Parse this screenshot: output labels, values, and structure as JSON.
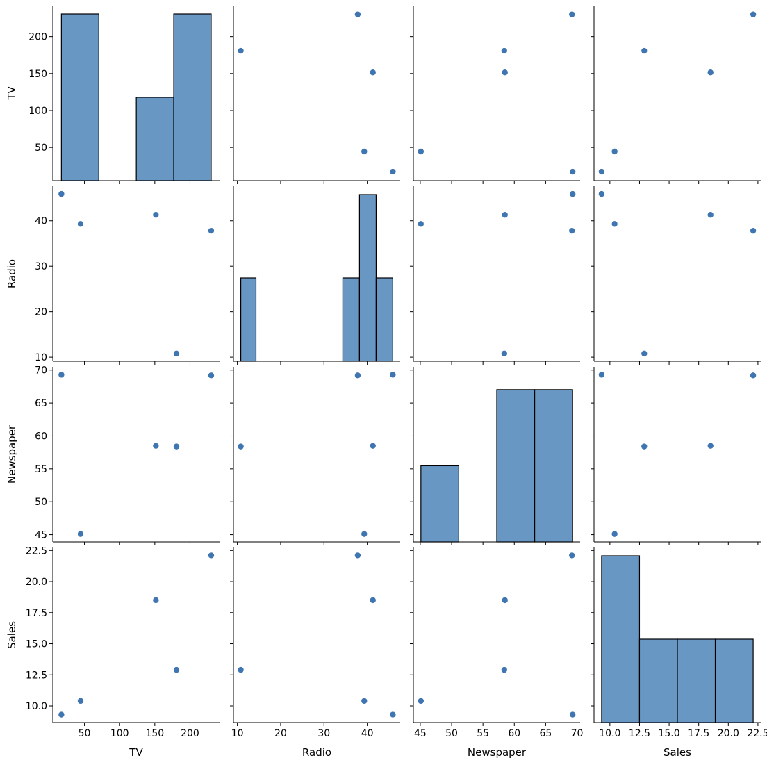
{
  "chart_data": {
    "type": "scatter",
    "variables": [
      "TV",
      "Radio",
      "Newspaper",
      "Sales"
    ],
    "observations": [
      {
        "TV": 230.1,
        "Radio": 37.8,
        "Newspaper": 69.2,
        "Sales": 22.1
      },
      {
        "TV": 44.5,
        "Radio": 39.3,
        "Newspaper": 45.1,
        "Sales": 10.4
      },
      {
        "TV": 17.2,
        "Radio": 45.9,
        "Newspaper": 69.3,
        "Sales": 9.3
      },
      {
        "TV": 151.5,
        "Radio": 41.3,
        "Newspaper": 58.5,
        "Sales": 18.5
      },
      {
        "TV": 180.8,
        "Radio": 10.8,
        "Newspaper": 58.4,
        "Sales": 12.9
      }
    ],
    "axes": {
      "TV": {
        "label": "TV",
        "lim": [
          5,
          242
        ],
        "ticks": [
          50,
          100,
          150,
          200
        ],
        "tick_labels": [
          "50",
          "100",
          "150",
          "200"
        ]
      },
      "Radio": {
        "label": "Radio",
        "lim": [
          9.1,
          47.6
        ],
        "ticks": [
          10,
          20,
          30,
          40
        ],
        "tick_labels": [
          "10",
          "20",
          "30",
          "40"
        ]
      },
      "Newspaper": {
        "label": "Newspaper",
        "lim": [
          43.9,
          70.5
        ],
        "ticks": [
          45,
          50,
          55,
          60,
          65,
          70
        ],
        "tick_labels": [
          "45",
          "50",
          "55",
          "60",
          "65",
          "70"
        ]
      },
      "Sales": {
        "label": "Sales",
        "lim": [
          8.66,
          22.74
        ],
        "ticks": [
          10,
          12.5,
          15,
          17.5,
          20,
          22.5
        ],
        "tick_labels": [
          "10.0",
          "12.5",
          "15.0",
          "17.5",
          "20.0",
          "22.5"
        ]
      }
    },
    "histograms": {
      "TV": {
        "bins": [
          [
            17.2,
            70.42
          ],
          [
            70.42,
            123.65
          ],
          [
            123.65,
            176.88
          ],
          [
            176.88,
            230.1
          ]
        ],
        "counts": [
          2,
          0,
          1,
          2
        ],
        "ylim": [
          0,
          2.1
        ],
        "_note_count_index_ignore": null
      },
      "Radio": {
        "bins": [
          [
            10.8,
            14.31
          ],
          [
            14.31,
            34.35
          ],
          [
            34.35,
            38.2
          ],
          [
            38.2,
            42.05
          ],
          [
            42.05,
            45.9
          ]
        ],
        "counts": [
          1,
          0,
          1,
          2,
          1
        ],
        "ylim": [
          0,
          2.1
        ]
      },
      "Newspaper": {
        "bins": [
          [
            45.1,
            51.15
          ],
          [
            51.15,
            57.2
          ],
          [
            57.2,
            63.25
          ],
          [
            63.25,
            69.3
          ]
        ],
        "counts": [
          1,
          0,
          2,
          2
        ],
        "ylim": [
          0,
          2.3
        ]
      },
      "Sales": {
        "bins": [
          [
            9.3,
            12.5
          ],
          [
            12.5,
            15.7
          ],
          [
            15.7,
            18.9
          ],
          [
            18.9,
            22.1
          ]
        ],
        "counts": [
          2,
          1,
          1,
          1
        ],
        "ylim": [
          0,
          2.1
        ]
      }
    },
    "grid": false,
    "legend": "none"
  }
}
